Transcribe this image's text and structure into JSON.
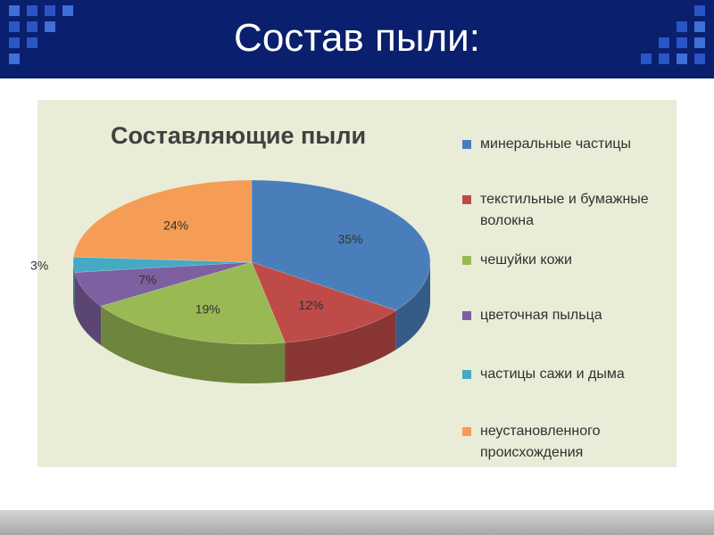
{
  "slide": {
    "title": "Состав пыли:"
  },
  "colors": {
    "header_bg": "#0a1f6e",
    "panel_bg": "#e9edd7"
  },
  "chart_data": {
    "type": "pie",
    "title": "Составляющие пыли",
    "legend_position": "right",
    "slices": [
      {
        "label": "минеральные частицы",
        "value": 35,
        "value_label": "35%",
        "color": "#4a7ebb"
      },
      {
        "label": "текстильные и бумажные волокна",
        "value": 12,
        "value_label": "12%",
        "color": "#be4b48"
      },
      {
        "label": "чешуйки кожи",
        "value": 19,
        "value_label": "19%",
        "color": "#98b954"
      },
      {
        "label": "цветочная пыльца",
        "value": 7,
        "value_label": "7%",
        "color": "#7d60a0"
      },
      {
        "label": "частицы сажи и дыма",
        "value": 3,
        "value_label": "3%",
        "color": "#46aac4"
      },
      {
        "label": "неустановленного происхождения",
        "value": 24,
        "value_label": "24%",
        "color": "#f59d56"
      }
    ]
  }
}
